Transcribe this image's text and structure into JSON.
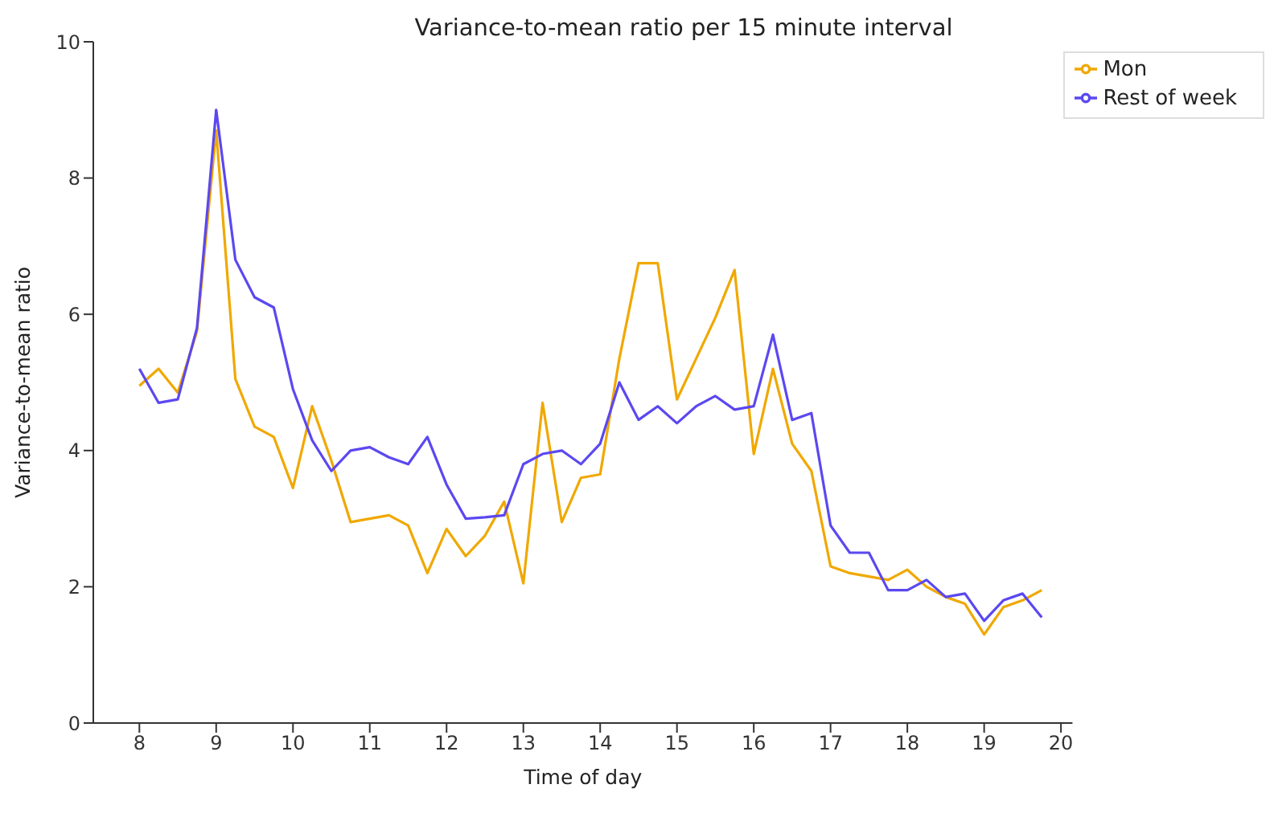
{
  "chart_data": {
    "type": "line",
    "title": "Variance-to-mean ratio per 15 minute interval",
    "xlabel": "Time of day",
    "ylabel": "Variance-to-mean ratio",
    "x": [
      8,
      8.25,
      8.5,
      8.75,
      9,
      9.25,
      9.5,
      9.75,
      10,
      10.25,
      10.5,
      10.75,
      11,
      11.25,
      11.5,
      11.75,
      12,
      12.25,
      12.5,
      12.75,
      13,
      13.25,
      13.5,
      13.75,
      14,
      14.25,
      14.5,
      14.75,
      15,
      15.25,
      15.5,
      15.75,
      16,
      16.25,
      16.5,
      16.75,
      17,
      17.25,
      17.5,
      17.75,
      18,
      18.25,
      18.5,
      18.75,
      19,
      19.25,
      19.5,
      19.75
    ],
    "series": [
      {
        "name": "Mon",
        "color": "#f0a800",
        "values": [
          4.95,
          5.2,
          4.85,
          5.75,
          8.7,
          5.05,
          4.35,
          4.2,
          3.45,
          4.65,
          3.85,
          2.95,
          3.0,
          3.05,
          2.9,
          2.2,
          2.85,
          2.45,
          2.75,
          3.25,
          2.05,
          4.7,
          2.95,
          3.6,
          3.65,
          5.35,
          6.75,
          6.75,
          4.75,
          5.35,
          5.95,
          6.65,
          3.95,
          5.2,
          4.1,
          3.7,
          2.3,
          2.2,
          2.15,
          2.1,
          2.25,
          2.0,
          1.85,
          1.75,
          1.3,
          1.7,
          1.8,
          1.95
        ]
      },
      {
        "name": "Rest of week",
        "color": "#5b48f0",
        "values": [
          5.2,
          4.7,
          4.75,
          5.8,
          9.0,
          6.8,
          6.25,
          6.1,
          4.9,
          4.15,
          3.7,
          4.0,
          4.05,
          3.9,
          3.8,
          4.2,
          3.5,
          3.0,
          3.02,
          3.05,
          3.8,
          3.95,
          4.0,
          3.8,
          4.1,
          5.0,
          4.45,
          4.65,
          4.4,
          4.65,
          4.8,
          4.6,
          4.65,
          5.7,
          4.45,
          4.55,
          2.9,
          2.5,
          2.5,
          1.95,
          1.95,
          2.1,
          1.85,
          1.9,
          1.5,
          1.8,
          1.9,
          1.55
        ]
      }
    ],
    "xlim": [
      7.4,
      20.15
    ],
    "xticks": [
      8,
      9,
      10,
      11,
      12,
      13,
      14,
      15,
      16,
      17,
      18,
      19,
      20
    ],
    "ylim": [
      0,
      10
    ],
    "yticks": [
      0,
      2,
      4,
      6,
      8,
      10
    ],
    "grid": false,
    "legend": "top right",
    "marker": "none",
    "line_style": "solid"
  }
}
